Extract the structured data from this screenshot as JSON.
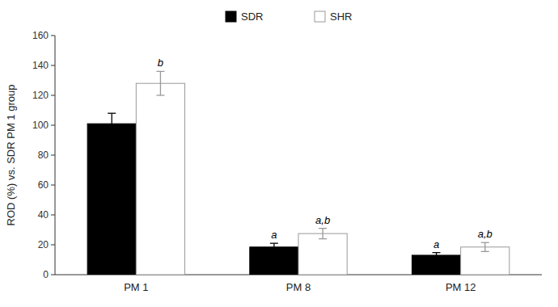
{
  "chart_data": {
    "type": "bar",
    "categories": [
      "PM 1",
      "PM 8",
      "PM 12"
    ],
    "series": [
      {
        "name": "SDR",
        "color": "#000000",
        "values": [
          101,
          18.5,
          13
        ],
        "errors": [
          7,
          2.5,
          1.8
        ],
        "annotations": [
          null,
          "a",
          "a"
        ]
      },
      {
        "name": "SHR",
        "color": "#ffffff",
        "values": [
          128,
          27.5,
          18.5
        ],
        "errors": [
          8,
          3.5,
          3.0
        ],
        "annotations": [
          "b",
          "a,b",
          "a,b"
        ]
      }
    ],
    "ylabel": "ROD (%) vs. SDR PM 1 group",
    "ylim": [
      0,
      160
    ],
    "yticks": [
      0,
      20,
      40,
      60,
      80,
      100,
      120,
      140,
      160
    ],
    "grid": false,
    "legend": "top"
  }
}
